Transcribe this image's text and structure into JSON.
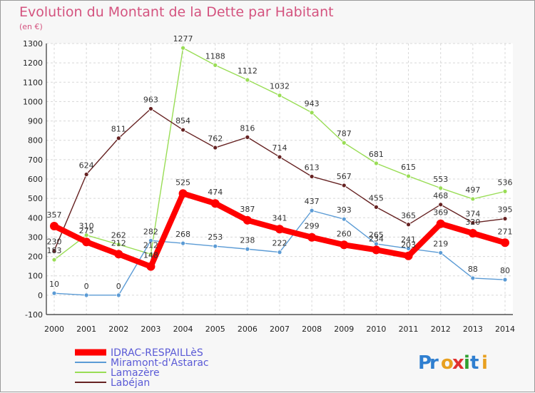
{
  "chart_data": {
    "type": "line",
    "title": "Evolution du Montant de la Dette par Habitant",
    "subtitle": "(en €)",
    "x": [
      "2000",
      "2001",
      "2002",
      "2003",
      "2004",
      "2005",
      "2006",
      "2007",
      "2008",
      "2009",
      "2010",
      "2011",
      "2012",
      "2013",
      "2014"
    ],
    "ylim": [
      -100,
      1300
    ],
    "yticks": [
      -100,
      0,
      100,
      200,
      300,
      400,
      500,
      600,
      700,
      800,
      900,
      1000,
      1100,
      1200,
      1300
    ],
    "grid": true,
    "legend_position": "bottom-left",
    "series": [
      {
        "name": "IDRAC-RESPAILLèS",
        "color": "#ff0000",
        "values": [
          357,
          275,
          212,
          148,
          525,
          474,
          387,
          341,
          299,
          260,
          234,
          203,
          369,
          320,
          271
        ]
      },
      {
        "name": "Miramont-d'Astarac",
        "color": "#5b9bd5",
        "values": [
          10,
          0,
          0,
          282,
          268,
          253,
          238,
          222,
          437,
          393,
          265,
          241,
          219,
          88,
          80
        ]
      },
      {
        "name": "Lamazère",
        "color": "#99dd55",
        "values": [
          183,
          310,
          262,
          212,
          1277,
          1188,
          1112,
          1032,
          943,
          787,
          681,
          615,
          553,
          497,
          536
        ]
      },
      {
        "name": "Labéjan",
        "color": "#662222",
        "values": [
          230,
          624,
          811,
          963,
          854,
          762,
          816,
          714,
          613,
          567,
          455,
          365,
          468,
          374,
          395
        ]
      }
    ]
  },
  "branding": {
    "logo_text": "Proxiti"
  }
}
